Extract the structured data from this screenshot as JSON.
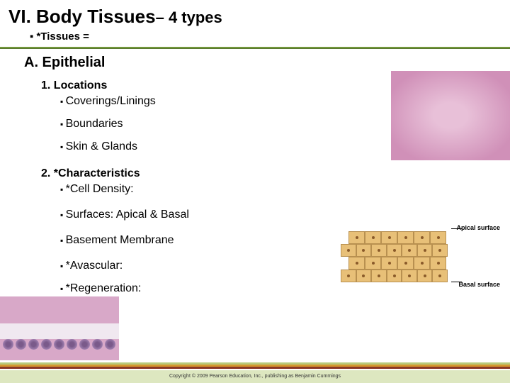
{
  "title": {
    "main": "VI.  Body Tissues",
    "sub": "– 4 types"
  },
  "subtitle": "*Tissues =",
  "sectionA": "A.  Epithelial",
  "items": {
    "n1": "1. Locations",
    "b1": "Coverings/Linings",
    "b2": "Boundaries",
    "b3": "Skin & Glands",
    "n2": "2. *Characteristics",
    "b4": "*Cell Density:",
    "b5": "Surfaces: Apical & Basal",
    "b6": "Basement Membrane",
    "b7": "*Avascular:",
    "b8": "*Regeneration:"
  },
  "diagram": {
    "apical": "Apical surface",
    "basal": "Basal surface"
  },
  "copyright": "Copyright © 2009 Pearson Education, Inc., publishing as Benjamin Cummings",
  "colors": {
    "green_bar": "#7a9e3f",
    "footer1": "#b8c97a",
    "footer2": "#d4972f",
    "footer3": "#8a3826",
    "footer_bg": "#dde7c0"
  }
}
